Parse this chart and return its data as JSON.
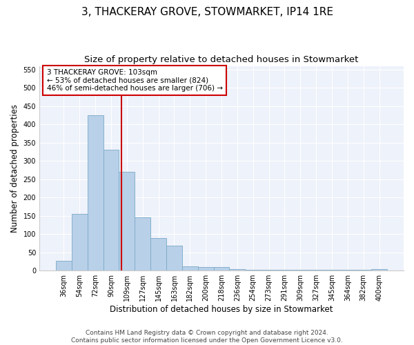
{
  "title": "3, THACKERAY GROVE, STOWMARKET, IP14 1RE",
  "subtitle": "Size of property relative to detached houses in Stowmarket",
  "xlabel": "Distribution of detached houses by size in Stowmarket",
  "ylabel": "Number of detached properties",
  "categories": [
    "36sqm",
    "54sqm",
    "72sqm",
    "90sqm",
    "109sqm",
    "127sqm",
    "145sqm",
    "163sqm",
    "182sqm",
    "200sqm",
    "218sqm",
    "236sqm",
    "254sqm",
    "273sqm",
    "291sqm",
    "309sqm",
    "327sqm",
    "345sqm",
    "364sqm",
    "382sqm",
    "400sqm"
  ],
  "values": [
    27,
    155,
    425,
    330,
    270,
    145,
    90,
    68,
    12,
    9,
    9,
    4,
    3,
    3,
    3,
    3,
    2,
    2,
    2,
    2,
    4
  ],
  "bar_color": "#b8d0e8",
  "bar_edge_color": "#7aaac8",
  "vline_x": 3.65,
  "vline_color": "#cc0000",
  "annotation_title": "3 THACKERAY GROVE: 103sqm",
  "annotation_line1": "← 53% of detached houses are smaller (824)",
  "annotation_line2": "46% of semi-detached houses are larger (706) →",
  "annotation_box_facecolor": "#ffffff",
  "annotation_box_edgecolor": "#cc0000",
  "footer1": "Contains HM Land Registry data © Crown copyright and database right 2024.",
  "footer2": "Contains public sector information licensed under the Open Government Licence v3.0.",
  "ylim": [
    0,
    560
  ],
  "yticks": [
    0,
    50,
    100,
    150,
    200,
    250,
    300,
    350,
    400,
    450,
    500,
    550
  ],
  "plot_bg_color": "#eef2fa",
  "fig_bg_color": "#ffffff",
  "grid_color": "#ffffff",
  "title_fontsize": 11,
  "subtitle_fontsize": 9.5,
  "tick_fontsize": 7,
  "ylabel_fontsize": 8.5,
  "xlabel_fontsize": 8.5,
  "annotation_fontsize": 7.5,
  "footer_fontsize": 6.5
}
